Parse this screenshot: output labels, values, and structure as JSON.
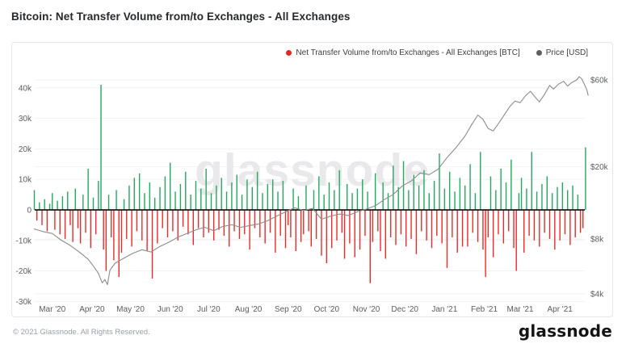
{
  "title": "Bitcoin: Net Transfer Volume from/to Exchanges - All Exchanges",
  "watermark": "glassnode",
  "footer": {
    "copyright": "© 2021 Glassnode. All Rights Reserved.",
    "brand": "glassnode"
  },
  "colors": {
    "positive_bar": "#23a95f",
    "negative_bar": "#ec2b26",
    "price_line": "#8c8c8c",
    "zero_line": "#1a1b1e",
    "gridline": "#f1f2f4",
    "axis_label": "#585c63",
    "legend_dot_volume": "#e8251f",
    "legend_dot_price": "#5f5f63"
  },
  "chart_data": {
    "type": "bar",
    "title": "Bitcoin: Net Transfer Volume from/to Exchanges - All Exchanges",
    "legend": [
      {
        "label": "Net Transfer Volume from/to Exchanges - All Exchanges [BTC]",
        "color": "#e8251f"
      },
      {
        "label": "Price [USD]",
        "color": "#5f5f63"
      }
    ],
    "left_axis": {
      "title": "Net Transfer Volume [BTC]",
      "scale": "linear",
      "unit": "BTC (thousands)",
      "ticks": [
        {
          "label": "40k",
          "value": 40
        },
        {
          "label": "30k",
          "value": 30
        },
        {
          "label": "20k",
          "value": 20
        },
        {
          "label": "10k",
          "value": 10
        },
        {
          "label": "0",
          "value": 0
        },
        {
          "label": "-10k",
          "value": -10
        },
        {
          "label": "-20k",
          "value": -20
        },
        {
          "label": "-30k",
          "value": -30
        }
      ]
    },
    "right_axis": {
      "title": "Price [USD]",
      "scale": "log",
      "unit": "USD (thousands)",
      "ticks": [
        {
          "label": "$60k",
          "value": 60
        },
        {
          "label": "$20k",
          "value": 20
        },
        {
          "label": "$8k",
          "value": 8
        },
        {
          "label": "$4k",
          "value": 4
        }
      ]
    },
    "x_axis": {
      "unit": "day index from Feb 16 2020",
      "ticks": [
        {
          "label": "Mar '20",
          "day": 14
        },
        {
          "label": "Apr '20",
          "day": 45
        },
        {
          "label": "May '20",
          "day": 75
        },
        {
          "label": "Jun '20",
          "day": 106
        },
        {
          "label": "Jul '20",
          "day": 136
        },
        {
          "label": "Aug '20",
          "day": 167
        },
        {
          "label": "Sep '20",
          "day": 198
        },
        {
          "label": "Oct '20",
          "day": 228
        },
        {
          "label": "Nov '20",
          "day": 259
        },
        {
          "label": "Dec '20",
          "day": 289
        },
        {
          "label": "Jan '21",
          "day": 320
        },
        {
          "label": "Feb '21",
          "day": 351
        },
        {
          "label": "Mar '21",
          "day": 379
        },
        {
          "label": "Apr '21",
          "day": 410
        }
      ]
    },
    "series": [
      {
        "name": "Net Transfer Volume from/to Exchanges - All Exchanges [BTC]",
        "type": "bar",
        "axis": "left",
        "start_day": 0,
        "day_step": 2,
        "values_unit": "thousand BTC (positive = green, negative = red)",
        "values": [
          6.5,
          -3.5,
          2.5,
          -5,
          3.5,
          -7,
          2,
          5.5,
          -6.5,
          3,
          -8,
          4.5,
          -9.5,
          6,
          -5,
          -10.5,
          7,
          -6,
          -11,
          5,
          -7.5,
          13.5,
          -12.5,
          4,
          -8,
          9.5,
          41,
          -13,
          -20,
          5,
          -9,
          -16.5,
          6.5,
          -22,
          -14,
          3.5,
          -9.5,
          8,
          -12,
          10.5,
          -7,
          12,
          -10,
          5.5,
          -13.5,
          9,
          -22.5,
          4,
          -11,
          7.5,
          -6,
          11,
          -9,
          15.5,
          -7,
          6,
          -10,
          8.5,
          -5.5,
          12.5,
          -8,
          5,
          -11.5,
          9.5,
          -6,
          7,
          -9,
          13.5,
          -7.5,
          5.5,
          -10,
          8,
          -6.5,
          10.5,
          -8.5,
          6,
          -12,
          9,
          -7,
          11.5,
          -9.5,
          5,
          -8,
          10,
          -13,
          7.5,
          -6,
          12.5,
          -9,
          5.5,
          -11,
          8.5,
          -7.5,
          10,
          -14,
          6,
          -8.5,
          9.5,
          -12.5,
          -5,
          -9,
          7,
          -13.5,
          4.5,
          -10.5,
          -8,
          8,
          -7,
          -12,
          6.5,
          -9.5,
          11,
          -15,
          5,
          -17.5,
          9,
          -12.5,
          6.5,
          -10,
          13,
          -7.5,
          -16,
          8.5,
          -11,
          5.5,
          -15.5,
          7,
          -13,
          10,
          -8.5,
          6,
          -24,
          -10.5,
          12,
          -7,
          -13.5,
          9,
          -16,
          5.5,
          -9,
          14.5,
          -11.5,
          7.5,
          -8,
          16,
          -12,
          6.5,
          -9.5,
          11.5,
          -14.5,
          8,
          -7,
          13,
          -10,
          5.5,
          -12.5,
          9.5,
          -8.5,
          18.5,
          -11,
          7,
          -19,
          12.5,
          -9,
          6,
          -14,
          10.5,
          -12,
          8,
          -12,
          15,
          -7.5,
          5.5,
          -10.5,
          19,
          -13,
          -22,
          -9,
          11,
          -15.5,
          6.5,
          -8,
          13.5,
          -11,
          9,
          -7,
          16.5,
          -12.5,
          -20,
          5.5,
          10.5,
          -14,
          7,
          -8.5,
          19,
          -10,
          6,
          -12,
          8.5,
          -7.5,
          11,
          -9.5,
          5.5,
          -13,
          7.5,
          -10,
          9,
          -8,
          6.5,
          -11.5,
          8,
          -9,
          5,
          -7.5,
          -6,
          20.5
        ]
      },
      {
        "name": "Price [USD]",
        "type": "line",
        "axis": "right",
        "values_unit": "thousand USD, points are [day, price]",
        "points": [
          [
            0,
            9.1
          ],
          [
            7,
            8.8
          ],
          [
            14,
            8.6
          ],
          [
            21,
            7.9
          ],
          [
            28,
            7.4
          ],
          [
            35,
            6.8
          ],
          [
            42,
            6.2
          ],
          [
            46,
            5.7
          ],
          [
            50,
            5.2
          ],
          [
            53,
            4.6
          ],
          [
            55,
            4.8
          ],
          [
            57,
            4.5
          ],
          [
            59,
            5.4
          ],
          [
            63,
            5.9
          ],
          [
            70,
            6.3
          ],
          [
            77,
            6.7
          ],
          [
            84,
            7.0
          ],
          [
            91,
            6.8
          ],
          [
            98,
            7.3
          ],
          [
            105,
            7.7
          ],
          [
            112,
            8.2
          ],
          [
            119,
            8.6
          ],
          [
            126,
            9.0
          ],
          [
            133,
            9.3
          ],
          [
            140,
            8.9
          ],
          [
            147,
            9.4
          ],
          [
            154,
            9.6
          ],
          [
            161,
            9.3
          ],
          [
            168,
            9.5
          ],
          [
            175,
            9.7
          ],
          [
            182,
            10.1
          ],
          [
            189,
            10.7
          ],
          [
            196,
            11.3
          ],
          [
            203,
            11.9
          ],
          [
            210,
            11.5
          ],
          [
            217,
            11.8
          ],
          [
            224,
            10.3
          ],
          [
            231,
            10.7
          ],
          [
            238,
            11.0
          ],
          [
            245,
            10.8
          ],
          [
            252,
            11.3
          ],
          [
            259,
            11.7
          ],
          [
            266,
            12.2
          ],
          [
            273,
            13.2
          ],
          [
            280,
            14.1
          ],
          [
            287,
            15.7
          ],
          [
            294,
            16.7
          ],
          [
            301,
            18.5
          ],
          [
            308,
            18.1
          ],
          [
            315,
            19.4
          ],
          [
            322,
            22.5
          ],
          [
            329,
            25.5
          ],
          [
            336,
            29.5
          ],
          [
            341,
            34
          ],
          [
            346,
            38.5
          ],
          [
            350,
            36.5
          ],
          [
            354,
            32.5
          ],
          [
            358,
            31.5
          ],
          [
            362,
            34.5
          ],
          [
            366,
            38
          ],
          [
            371,
            43
          ],
          [
            375,
            46
          ],
          [
            379,
            45
          ],
          [
            383,
            49
          ],
          [
            387,
            52
          ],
          [
            391,
            48
          ],
          [
            394,
            45.5
          ],
          [
            398,
            50
          ],
          [
            402,
            56
          ],
          [
            405,
            53.5
          ],
          [
            409,
            57
          ],
          [
            413,
            59
          ],
          [
            416,
            55.5
          ],
          [
            419,
            58
          ],
          [
            423,
            60
          ],
          [
            425,
            62.5
          ],
          [
            427,
            61
          ],
          [
            429,
            57
          ],
          [
            431,
            53
          ],
          [
            432,
            49.5
          ]
        ]
      }
    ]
  }
}
